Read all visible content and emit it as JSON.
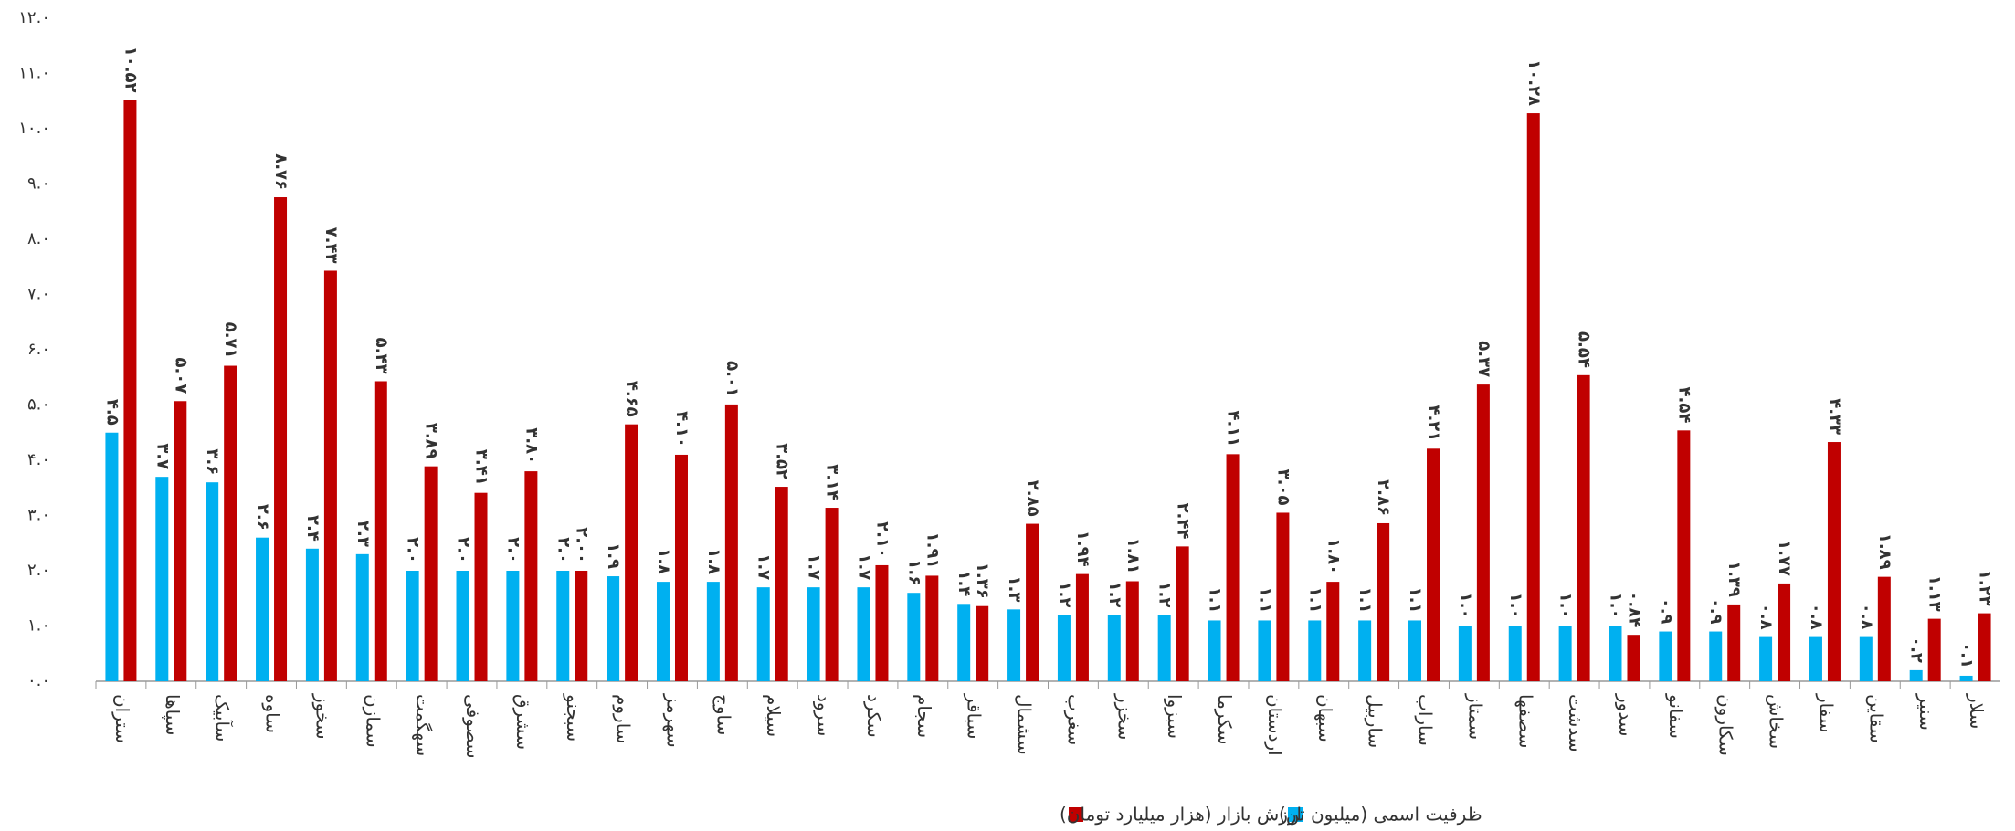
{
  "chart_data": {
    "type": "bar",
    "categories": [
      "ستران",
      "سپاها",
      "سآبیک",
      "ساوه",
      "سخوز",
      "سمازن",
      "سهگمت",
      "سصوفی",
      "سشرق",
      "سبجنو",
      "ساروم",
      "سهرمز",
      "ساوج",
      "سیلام",
      "سرود",
      "سکرد",
      "سجام",
      "سباقر",
      "سشمال",
      "سغرب",
      "سخزر",
      "سبزوا",
      "سکرما",
      "اردستان",
      "سبهان",
      "ساربیل",
      "ساراب",
      "سمتاز",
      "سصفها",
      "سدشت",
      "سدور",
      "سفانو",
      "سکارون",
      "سخاش",
      "سفار",
      "سقاین",
      "سنیر",
      "سلار"
    ],
    "series": [
      {
        "name": "ظرفیت اسمی (میلیون تن)",
        "color": "#00b0f0",
        "values": [
          4.5,
          3.7,
          3.6,
          2.6,
          2.4,
          2.3,
          2.0,
          2.0,
          2.0,
          2.0,
          1.9,
          1.8,
          1.8,
          1.7,
          1.7,
          1.7,
          1.6,
          1.4,
          1.3,
          1.2,
          1.2,
          1.2,
          1.1,
          1.1,
          1.1,
          1.1,
          1.1,
          1.0,
          1.0,
          1.0,
          1.0,
          0.9,
          0.9,
          0.8,
          0.8,
          0.8,
          0.2,
          0.1
        ],
        "value_labels": [
          "۴.۵",
          "۳.۷",
          "۳.۶",
          "۲.۶",
          "۲.۴",
          "۲.۳",
          "۲.۰",
          "۲.۰",
          "۲.۰",
          "۲.۰",
          "۱.۹",
          "۱.۸",
          "۱.۸",
          "۱.۷",
          "۱.۷",
          "۱.۷",
          "۱.۶",
          "۱.۴",
          "۱.۳",
          "۱.۲",
          "۱.۲",
          "۱.۲",
          "۱.۱",
          "۱.۱",
          "۱.۱",
          "۱.۱",
          "۱.۱",
          "۱.۰",
          "۱.۰",
          "۱.۰",
          "۱.۰",
          "۰.۹",
          "۰.۹",
          "۰.۸",
          "۰.۸",
          "۰.۸",
          "۰.۲",
          "۰.۱"
        ]
      },
      {
        "name": "ارزش بازار (هزار میلیارد تومان)",
        "color": "#c00000",
        "values": [
          10.52,
          5.07,
          5.71,
          8.76,
          7.43,
          5.43,
          3.89,
          3.41,
          3.8,
          2.0,
          4.65,
          4.1,
          5.01,
          3.52,
          3.14,
          2.1,
          1.91,
          1.36,
          2.85,
          1.94,
          1.81,
          2.44,
          4.11,
          3.05,
          1.8,
          2.86,
          4.21,
          5.37,
          10.28,
          5.54,
          0.84,
          4.54,
          1.39,
          1.77,
          4.33,
          1.89,
          1.13,
          1.23
        ],
        "value_labels": [
          "۱۰.۵۲",
          "۵.۰۷",
          "۵.۷۱",
          "۸.۷۶",
          "۷.۴۳",
          "۵.۴۳",
          "۳.۸۹",
          "۳.۴۱",
          "۳.۸۰",
          "۲.۰۰",
          "۴.۶۵",
          "۴.۱۰",
          "۵.۰۱",
          "۳.۵۲",
          "۳.۱۴",
          "۲.۱۰",
          "۱.۹۱",
          "۱.۳۶",
          "۲.۸۵",
          "۱.۹۴",
          "۱.۸۱",
          "۲.۴۴",
          "۴.۱۱",
          "۳.۰۵",
          "۱.۸۰",
          "۲.۸۶",
          "۴.۲۱",
          "۵.۳۷",
          "۱۰.۲۸",
          "۵.۵۴",
          "۰.۸۴",
          "۴.۵۴",
          "۱.۳۹",
          "۱.۷۷",
          "۴.۳۳",
          "۱.۸۹",
          "۱.۱۳",
          "۱.۲۳"
        ]
      }
    ],
    "ylim": [
      0,
      12
    ],
    "yticks": [
      {
        "value": 0,
        "label": "۰.۰"
      },
      {
        "value": 1,
        "label": "۱.۰"
      },
      {
        "value": 2,
        "label": "۲.۰"
      },
      {
        "value": 3,
        "label": "۳.۰"
      },
      {
        "value": 4,
        "label": "۴.۰"
      },
      {
        "value": 5,
        "label": "۵.۰"
      },
      {
        "value": 6,
        "label": "۶.۰"
      },
      {
        "value": 7,
        "label": "۷.۰"
      },
      {
        "value": 8,
        "label": "۸.۰"
      },
      {
        "value": 9,
        "label": "۹.۰"
      },
      {
        "value": 10,
        "label": "۱۰.۰"
      },
      {
        "value": 11,
        "label": "۱۱.۰"
      },
      {
        "value": 12,
        "label": "۱۲.۰"
      }
    ],
    "grid": false,
    "legend": "bottom"
  }
}
